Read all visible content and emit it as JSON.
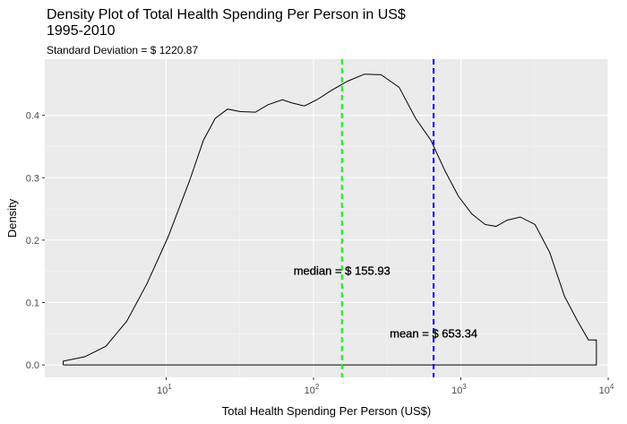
{
  "chart_data": {
    "type": "area",
    "title": "Density Plot of Total Health Spending Per Person in US$\n1995-2010",
    "subtitle": "Standard Deviation = $ 1220.87",
    "xlabel": "Total Health Spending Per Person (US$)",
    "ylabel": "Density",
    "x_scale": "log10",
    "xlim": [
      1.5,
      10000
    ],
    "ylim": [
      -0.02,
      0.49
    ],
    "grid": true,
    "x_ticks": [
      {
        "value": 10,
        "label": "10",
        "exp": "1"
      },
      {
        "value": 100,
        "label": "10",
        "exp": "2"
      },
      {
        "value": 1000,
        "label": "10",
        "exp": "3"
      },
      {
        "value": 10000,
        "label": "10",
        "exp": "4"
      }
    ],
    "y_ticks": [
      0.0,
      0.1,
      0.2,
      0.3,
      0.4
    ],
    "y_tick_labels": [
      "0.0",
      "0.1",
      "0.2",
      "0.3",
      "0.4"
    ],
    "density_curve": [
      [
        2.0,
        0.0
      ],
      [
        2.0,
        0.006
      ],
      [
        2.8,
        0.013
      ],
      [
        3.9,
        0.03
      ],
      [
        5.4,
        0.07
      ],
      [
        7.4,
        0.13
      ],
      [
        10.3,
        0.205
      ],
      [
        14.4,
        0.295
      ],
      [
        17.9,
        0.36
      ],
      [
        21.5,
        0.395
      ],
      [
        26.1,
        0.41
      ],
      [
        31.9,
        0.406
      ],
      [
        40.3,
        0.405
      ],
      [
        49.1,
        0.417
      ],
      [
        61.5,
        0.425
      ],
      [
        71.2,
        0.42
      ],
      [
        86.7,
        0.415
      ],
      [
        105.6,
        0.425
      ],
      [
        132.3,
        0.44
      ],
      [
        171.2,
        0.455
      ],
      [
        222.2,
        0.466
      ],
      [
        287.4,
        0.465
      ],
      [
        380.8,
        0.445
      ],
      [
        493.7,
        0.395
      ],
      [
        626.1,
        0.36
      ],
      [
        784.3,
        0.31
      ],
      [
        964.5,
        0.27
      ],
      [
        1187.5,
        0.242
      ],
      [
        1462.2,
        0.225
      ],
      [
        1733.9,
        0.222
      ],
      [
        2061.2,
        0.232
      ],
      [
        2532.5,
        0.237
      ],
      [
        3188.4,
        0.225
      ],
      [
        4013.2,
        0.18
      ],
      [
        5051.0,
        0.11
      ],
      [
        6207.9,
        0.07
      ],
      [
        7345.3,
        0.04
      ],
      [
        8315.9,
        0.04
      ],
      [
        8315.9,
        0.0
      ],
      [
        2.0,
        0.0
      ]
    ],
    "vlines": [
      {
        "name": "median",
        "x": 155.93,
        "color": "#00ff00",
        "style": "dashed"
      },
      {
        "name": "mean",
        "x": 653.34,
        "color": "#0000ff",
        "style": "dashed"
      }
    ],
    "annotations": [
      {
        "text": "median = $ 155.93",
        "x": 155.93,
        "y": 0.15
      },
      {
        "text": "mean = $ 653.34",
        "x": 653.34,
        "y": 0.05
      }
    ]
  }
}
